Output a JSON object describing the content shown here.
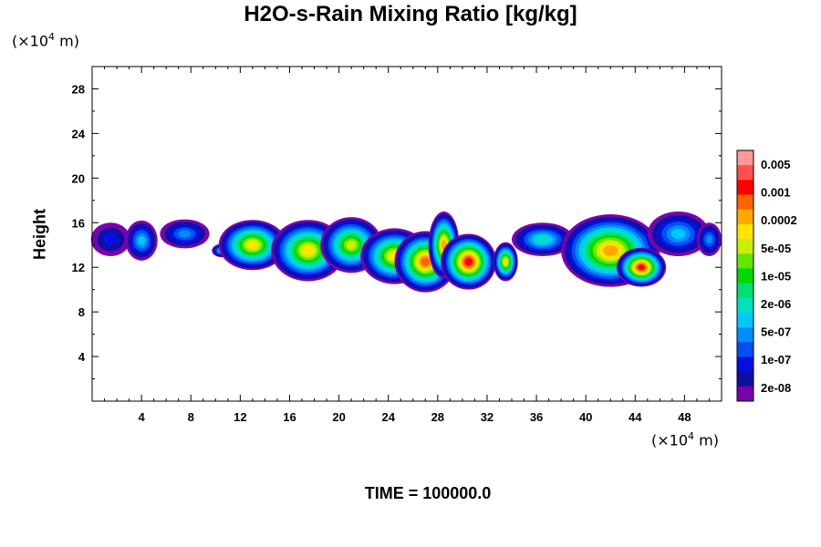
{
  "chart_data": {
    "type": "heatmap",
    "title": "H2O-s-Rain Mixing Ratio [kg/kg]",
    "ylabel": "Height",
    "xlabel": "",
    "x_unit_label": "(×10⁴ m)",
    "y_unit_label": "(×10⁴ m)",
    "footer": "TIME = 100000.0",
    "xlim": [
      0,
      51
    ],
    "ylim": [
      0,
      30
    ],
    "x_ticks": [
      4,
      8,
      12,
      16,
      20,
      24,
      28,
      32,
      36,
      40,
      44,
      48
    ],
    "y_ticks": [
      4,
      8,
      12,
      16,
      20,
      24,
      28
    ],
    "colorbar": {
      "labels": [
        "0.005",
        "0.001",
        "0.0002",
        "5e-05",
        "1e-05",
        "2e-06",
        "5e-07",
        "1e-07",
        "2e-08"
      ],
      "colors_top_to_bottom": [
        "#ff9999",
        "#ff5050",
        "#ff0000",
        "#ff6400",
        "#ffa800",
        "#ffe400",
        "#c8f000",
        "#64e600",
        "#00d800",
        "#00e070",
        "#00e0c0",
        "#00c8ff",
        "#008cff",
        "#0050f0",
        "#0010e0",
        "#1010a0",
        "#7a00b0"
      ]
    },
    "clouds": [
      {
        "x": 1.5,
        "z": 14.5,
        "w": 3.2,
        "h": 3.0,
        "peak": 2
      },
      {
        "x": 4.0,
        "z": 14.4,
        "w": 2.6,
        "h": 3.6,
        "peak": 5
      },
      {
        "x": 7.5,
        "z": 15.0,
        "w": 4.0,
        "h": 2.6,
        "peak": 4
      },
      {
        "x": 10.5,
        "z": 13.5,
        "w": 1.6,
        "h": 1.2,
        "peak": 6
      },
      {
        "x": 13.0,
        "z": 14.0,
        "w": 5.5,
        "h": 4.5,
        "peak": 11
      },
      {
        "x": 17.5,
        "z": 13.5,
        "w": 6.0,
        "h": 5.5,
        "peak": 11
      },
      {
        "x": 21.0,
        "z": 14.0,
        "w": 5.0,
        "h": 5.0,
        "peak": 10
      },
      {
        "x": 24.5,
        "z": 13.0,
        "w": 5.5,
        "h": 5.0,
        "peak": 11
      },
      {
        "x": 27.0,
        "z": 12.5,
        "w": 5.0,
        "h": 5.5,
        "peak": 13
      },
      {
        "x": 28.5,
        "z": 14.0,
        "w": 2.5,
        "h": 6.0,
        "peak": 12
      },
      {
        "x": 30.5,
        "z": 12.5,
        "w": 4.5,
        "h": 5.0,
        "peak": 14
      },
      {
        "x": 33.5,
        "z": 12.5,
        "w": 2.0,
        "h": 3.5,
        "peak": 11
      },
      {
        "x": 36.5,
        "z": 14.5,
        "w": 5.0,
        "h": 3.0,
        "peak": 6
      },
      {
        "x": 42.0,
        "z": 13.5,
        "w": 8.0,
        "h": 6.5,
        "peak": 12
      },
      {
        "x": 44.5,
        "z": 12.0,
        "w": 4.0,
        "h": 3.5,
        "peak": 14
      },
      {
        "x": 47.5,
        "z": 15.0,
        "w": 5.0,
        "h": 4.0,
        "peak": 5
      },
      {
        "x": 50.0,
        "z": 14.5,
        "w": 2.0,
        "h": 3.0,
        "peak": 4
      }
    ]
  }
}
